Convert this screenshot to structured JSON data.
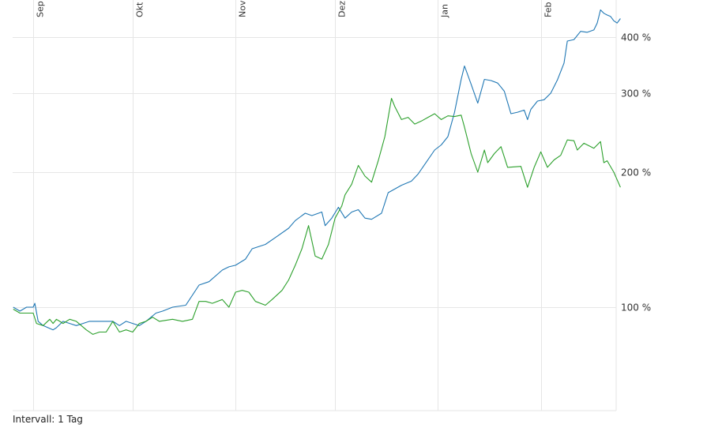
{
  "interval_label": "Intervall: 1 Tag",
  "colors": {
    "grid": "#e6e6e6",
    "axis": "#cccccc",
    "series_blue": "#1f77b4",
    "series_green": "#2ca02c"
  },
  "chart_data": {
    "type": "line",
    "title": "",
    "xlabel": "",
    "ylabel": "",
    "y_scale": "log",
    "ylim": [
      57,
      485
    ],
    "y_ticks": [
      {
        "value": 100,
        "label": "100 %"
      },
      {
        "value": 200,
        "label": "200 %"
      },
      {
        "value": 300,
        "label": "300 %"
      },
      {
        "value": 400,
        "label": "400 %"
      }
    ],
    "x_month_labels": [
      {
        "label": "Sep",
        "day": 1
      },
      {
        "label": "Okt",
        "day": 31
      },
      {
        "label": "Nov",
        "day": 62
      },
      {
        "label": "Dez",
        "day": 92
      },
      {
        "label": "Jan",
        "day": 123
      },
      {
        "label": "Feb",
        "day": 154
      }
    ],
    "grid": true,
    "legend": "none",
    "series": [
      {
        "color": "#1f77b4",
        "points": [
          [
            -5,
            100
          ],
          [
            -3,
            98
          ],
          [
            -1,
            100
          ],
          [
            1,
            100
          ],
          [
            1.5,
            102
          ],
          [
            2.5,
            93
          ],
          [
            4,
            91
          ],
          [
            7,
            89
          ],
          [
            8,
            90
          ],
          [
            10,
            93
          ],
          [
            12,
            92
          ],
          [
            14,
            91
          ],
          [
            16,
            92
          ],
          [
            18,
            93
          ],
          [
            20,
            93
          ],
          [
            22,
            93
          ],
          [
            25,
            93
          ],
          [
            27,
            91
          ],
          [
            29,
            93
          ],
          [
            31,
            92
          ],
          [
            33,
            91
          ],
          [
            35,
            93
          ],
          [
            38,
            97
          ],
          [
            40,
            98
          ],
          [
            43,
            100
          ],
          [
            47,
            101
          ],
          [
            51,
            112
          ],
          [
            54,
            114
          ],
          [
            58,
            121
          ],
          [
            60,
            123
          ],
          [
            62,
            124
          ],
          [
            65,
            128
          ],
          [
            67,
            135
          ],
          [
            71,
            138
          ],
          [
            74,
            143
          ],
          [
            78,
            150
          ],
          [
            80,
            156
          ],
          [
            83,
            162
          ],
          [
            85,
            160
          ],
          [
            88,
            163
          ],
          [
            89,
            152
          ],
          [
            91,
            158
          ],
          [
            93,
            167
          ],
          [
            95,
            158
          ],
          [
            97,
            163
          ],
          [
            99,
            165
          ],
          [
            101,
            158
          ],
          [
            103,
            157
          ],
          [
            106,
            162
          ],
          [
            108,
            180
          ],
          [
            112,
            187
          ],
          [
            115,
            191
          ],
          [
            117,
            198
          ],
          [
            119,
            208
          ],
          [
            122,
            224
          ],
          [
            124,
            230
          ],
          [
            126,
            240
          ],
          [
            128,
            272
          ],
          [
            130,
            322
          ],
          [
            131,
            345
          ],
          [
            133,
            314
          ],
          [
            135,
            285
          ],
          [
            137,
            322
          ],
          [
            139,
            320
          ],
          [
            141,
            316
          ],
          [
            143,
            303
          ],
          [
            145,
            270
          ],
          [
            147,
            272
          ],
          [
            149,
            275
          ],
          [
            150,
            262
          ],
          [
            151,
            276
          ],
          [
            153,
            288
          ],
          [
            155,
            290
          ],
          [
            157,
            300
          ],
          [
            159,
            321
          ],
          [
            161,
            350
          ],
          [
            162,
            392
          ],
          [
            164,
            395
          ],
          [
            166,
            412
          ],
          [
            168,
            410
          ],
          [
            170,
            415
          ],
          [
            171,
            430
          ],
          [
            172,
            460
          ],
          [
            173,
            452
          ],
          [
            174,
            448
          ],
          [
            175,
            445
          ],
          [
            176,
            435
          ],
          [
            177,
            430
          ],
          [
            178,
            440
          ]
        ]
      },
      {
        "color": "#2ca02c",
        "points": [
          [
            -5,
            99
          ],
          [
            -3,
            97
          ],
          [
            -1,
            97
          ],
          [
            1,
            97
          ],
          [
            2,
            92
          ],
          [
            4,
            91
          ],
          [
            6,
            94
          ],
          [
            7,
            92
          ],
          [
            8,
            94
          ],
          [
            9,
            93
          ],
          [
            10,
            92
          ],
          [
            12,
            94
          ],
          [
            14,
            93
          ],
          [
            17,
            89
          ],
          [
            19,
            87
          ],
          [
            21,
            88
          ],
          [
            23,
            88
          ],
          [
            25,
            93
          ],
          [
            27,
            88
          ],
          [
            29,
            89
          ],
          [
            31,
            88
          ],
          [
            33,
            92
          ],
          [
            35,
            93
          ],
          [
            37,
            95
          ],
          [
            39,
            93
          ],
          [
            43,
            94
          ],
          [
            46,
            93
          ],
          [
            49,
            94
          ],
          [
            51,
            103
          ],
          [
            53,
            103
          ],
          [
            55,
            102
          ],
          [
            58,
            104
          ],
          [
            60,
            100
          ],
          [
            62,
            108
          ],
          [
            64,
            109
          ],
          [
            66,
            108
          ],
          [
            68,
            103
          ],
          [
            71,
            101
          ],
          [
            73,
            104
          ],
          [
            76,
            109
          ],
          [
            78,
            115
          ],
          [
            80,
            124
          ],
          [
            82,
            135
          ],
          [
            84,
            152
          ],
          [
            86,
            130
          ],
          [
            88,
            128
          ],
          [
            90,
            138
          ],
          [
            92,
            158
          ],
          [
            94,
            168
          ],
          [
            95,
            178
          ],
          [
            97,
            188
          ],
          [
            99,
            207
          ],
          [
            101,
            196
          ],
          [
            103,
            190
          ],
          [
            105,
            212
          ],
          [
            107,
            240
          ],
          [
            109,
            292
          ],
          [
            110,
            280
          ],
          [
            112,
            262
          ],
          [
            114,
            265
          ],
          [
            116,
            256
          ],
          [
            118,
            260
          ],
          [
            120,
            265
          ],
          [
            122,
            270
          ],
          [
            124,
            262
          ],
          [
            126,
            267
          ],
          [
            128,
            266
          ],
          [
            130,
            268
          ],
          [
            131,
            252
          ],
          [
            133,
            220
          ],
          [
            135,
            200
          ],
          [
            137,
            224
          ],
          [
            138,
            210
          ],
          [
            140,
            220
          ],
          [
            142,
            228
          ],
          [
            144,
            205
          ],
          [
            148,
            206
          ],
          [
            150,
            185
          ],
          [
            152,
            205
          ],
          [
            154,
            222
          ],
          [
            156,
            205
          ],
          [
            158,
            213
          ],
          [
            160,
            218
          ],
          [
            162,
            236
          ],
          [
            164,
            235
          ],
          [
            165,
            224
          ],
          [
            167,
            232
          ],
          [
            170,
            226
          ],
          [
            172,
            234
          ],
          [
            173,
            210
          ],
          [
            174,
            212
          ],
          [
            176,
            200
          ],
          [
            178,
            185
          ]
        ]
      }
    ]
  }
}
